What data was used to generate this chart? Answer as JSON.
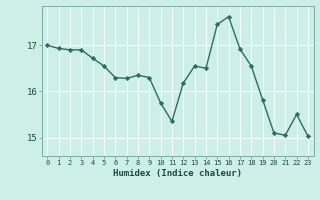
{
  "x": [
    0,
    1,
    2,
    3,
    4,
    5,
    6,
    7,
    8,
    9,
    10,
    11,
    12,
    13,
    14,
    15,
    16,
    17,
    18,
    19,
    20,
    21,
    22,
    23
  ],
  "y": [
    17.0,
    16.93,
    16.9,
    16.9,
    16.72,
    16.55,
    16.3,
    16.28,
    16.35,
    16.3,
    15.75,
    15.35,
    16.18,
    16.55,
    16.5,
    17.45,
    17.62,
    16.92,
    16.55,
    15.82,
    15.1,
    15.05,
    15.5,
    15.03
  ],
  "xlabel": "Humidex (Indice chaleur)",
  "bg_color": "#ceeee8",
  "grid_color": "#f5fffe",
  "line_color": "#2a6e63",
  "marker_color": "#2a6e63",
  "text_color": "#1a4a42",
  "yticks": [
    15,
    16,
    17
  ],
  "ytick_labels": [
    "15",
    "16",
    "17"
  ],
  "xtick_labels": [
    "0",
    "1",
    "2",
    "3",
    "4",
    "5",
    "6",
    "7",
    "8",
    "9",
    "10",
    "11",
    "12",
    "13",
    "14",
    "15",
    "16",
    "17",
    "18",
    "19",
    "20",
    "21",
    "22",
    "23"
  ],
  "xlim": [
    -0.5,
    23.5
  ],
  "ylim": [
    14.6,
    17.85
  ]
}
